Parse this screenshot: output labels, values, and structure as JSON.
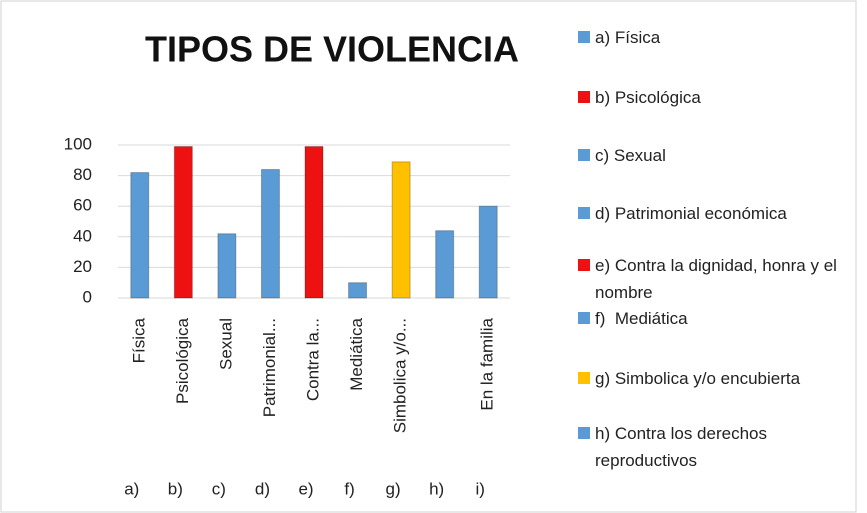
{
  "chart_data": {
    "type": "bar",
    "title": "TIPOS DE VIOLENCIA",
    "categories": [
      "Física",
      "Psicológica",
      "Sexual",
      "Patrimonial...",
      "Contra la...",
      "Mediática",
      "Simbolica y/o...",
      null,
      "En la familia"
    ],
    "group_labels": [
      "a)",
      "b)",
      "c)",
      "d)",
      "e)",
      "f)",
      "g)",
      "h)",
      "i)"
    ],
    "values": [
      82,
      99,
      42,
      84,
      99,
      10,
      89,
      44,
      60
    ],
    "colors": [
      "#5b9bd5",
      "#ee1111",
      "#5b9bd5",
      "#5b9bd5",
      "#ee1111",
      "#5b9bd5",
      "#ffc000",
      "#5b9bd5",
      "#5b9bd5"
    ],
    "ylim": [
      0,
      100
    ],
    "yticks": [
      0,
      20,
      40,
      60,
      80,
      100
    ],
    "grid": true,
    "legend": [
      {
        "label": "a) Física",
        "color": "#5b9bd5"
      },
      {
        "label": "b) Psicológica",
        "color": "#ee1111"
      },
      {
        "label": "c) Sexual",
        "color": "#5b9bd5"
      },
      {
        "label": "d) Patrimonial económica",
        "color": "#5b9bd5"
      },
      {
        "label": "e) Contra la dignidad, honra y el nombre",
        "color": "#ee1111"
      },
      {
        "label": "f)  Mediática",
        "color": "#5b9bd5"
      },
      {
        "label": "g) Simbolica y/o encubierta",
        "color": "#ffc000"
      },
      {
        "label": "h) Contra los derechos reproductivos",
        "color": "#5b9bd5"
      }
    ]
  }
}
